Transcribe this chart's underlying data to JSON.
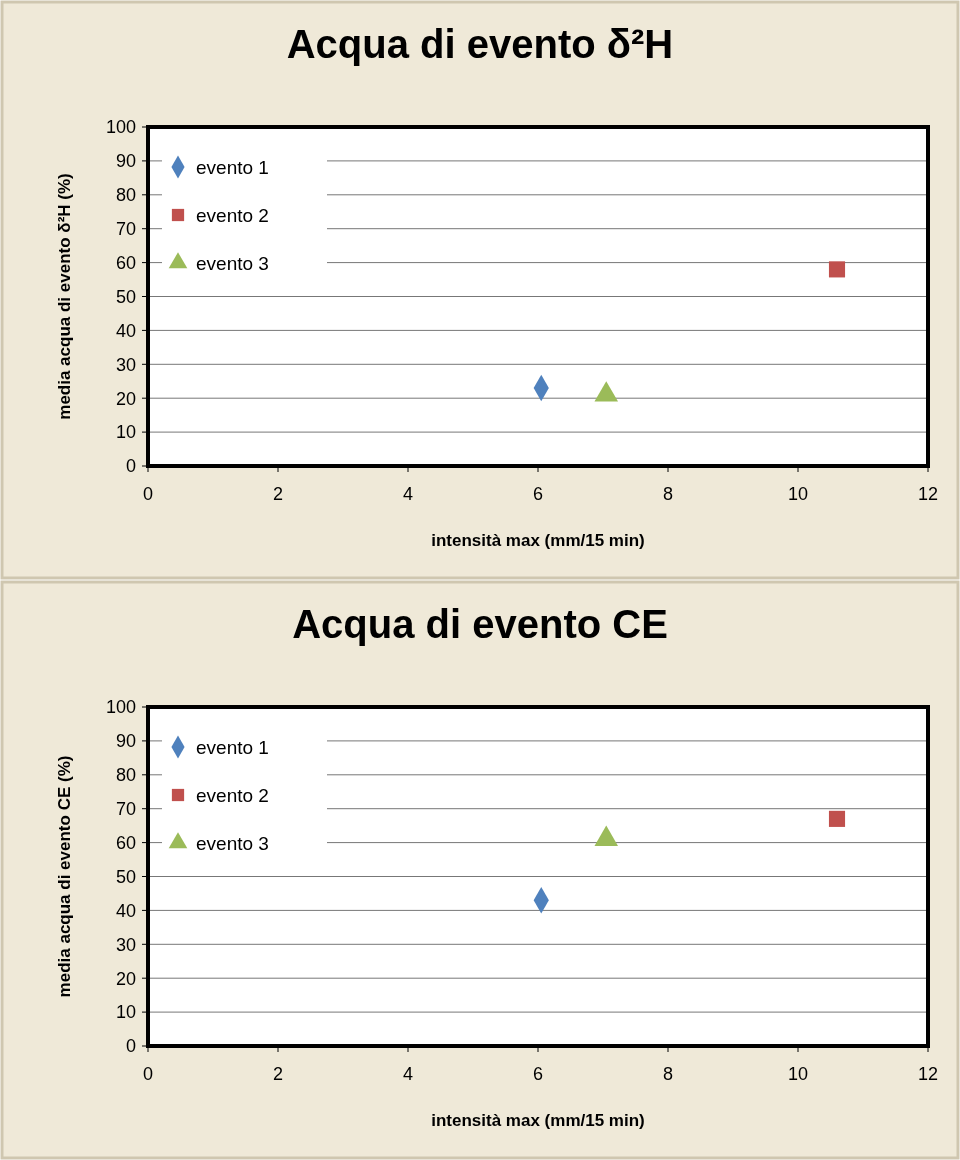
{
  "chart_data": [
    {
      "type": "scatter",
      "title": "Acqua di evento δ²H",
      "xlabel": "intensità max (mm/15 min)",
      "ylabel": "media acqua di evento δ²H (%)",
      "xlim": [
        0,
        12
      ],
      "xticks": [
        0,
        2,
        4,
        6,
        8,
        10,
        12
      ],
      "ylim": [
        0,
        100
      ],
      "yticks": [
        0,
        10,
        20,
        30,
        40,
        50,
        60,
        70,
        80,
        90,
        100
      ],
      "grid": "y",
      "legend": "top left",
      "series": [
        {
          "name": "evento 1",
          "color": "#4f81bd",
          "marker": "diamond",
          "x": [
            6.05
          ],
          "values": [
            23
          ]
        },
        {
          "name": "evento 2",
          "color": "#c0504d",
          "marker": "square",
          "x": [
            10.6
          ],
          "values": [
            58
          ]
        },
        {
          "name": "evento 3",
          "color": "#9bbb59",
          "marker": "triangle",
          "x": [
            7.05
          ],
          "values": [
            21
          ]
        }
      ]
    },
    {
      "type": "scatter",
      "title": "Acqua di evento CE",
      "xlabel": "intensità max (mm/15 min)",
      "ylabel": "media acqua di evento CE (%)",
      "xlim": [
        0,
        12
      ],
      "xticks": [
        0,
        2,
        4,
        6,
        8,
        10,
        12
      ],
      "ylim": [
        0,
        100
      ],
      "yticks": [
        0,
        10,
        20,
        30,
        40,
        50,
        60,
        70,
        80,
        90,
        100
      ],
      "grid": "y",
      "legend": "top left",
      "series": [
        {
          "name": "evento 1",
          "color": "#4f81bd",
          "marker": "diamond",
          "x": [
            6.05
          ],
          "values": [
            43
          ]
        },
        {
          "name": "evento 2",
          "color": "#c0504d",
          "marker": "square",
          "x": [
            10.6
          ],
          "values": [
            67
          ]
        },
        {
          "name": "evento 3",
          "color": "#9bbb59",
          "marker": "triangle",
          "x": [
            7.05
          ],
          "values": [
            61
          ]
        }
      ]
    }
  ]
}
